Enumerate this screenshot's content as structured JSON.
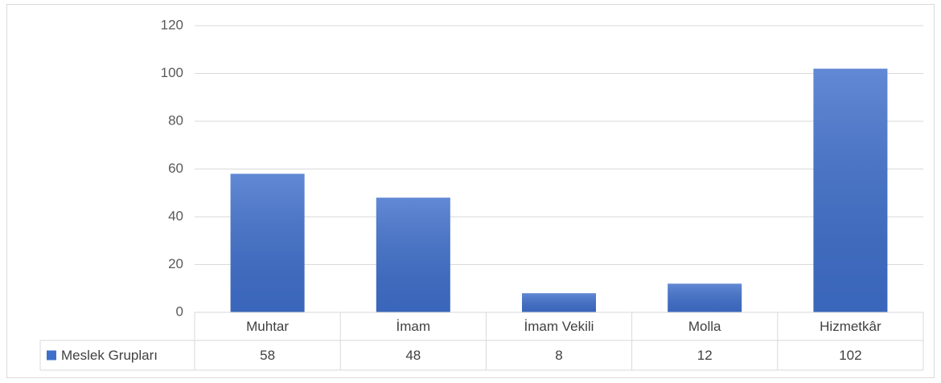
{
  "chart_data": {
    "type": "bar",
    "categories": [
      "Muhtar",
      "İmam",
      "İmam Vekili",
      "Molla",
      "Hizmetkâr"
    ],
    "series": [
      {
        "name": "Meslek Grupları",
        "color": "#3f6fcb",
        "values": [
          58,
          48,
          8,
          12,
          102
        ]
      }
    ],
    "ylim": [
      0,
      120
    ],
    "yticks": [
      0,
      20,
      40,
      60,
      80,
      100,
      120
    ],
    "grid": true,
    "data_table": true
  }
}
